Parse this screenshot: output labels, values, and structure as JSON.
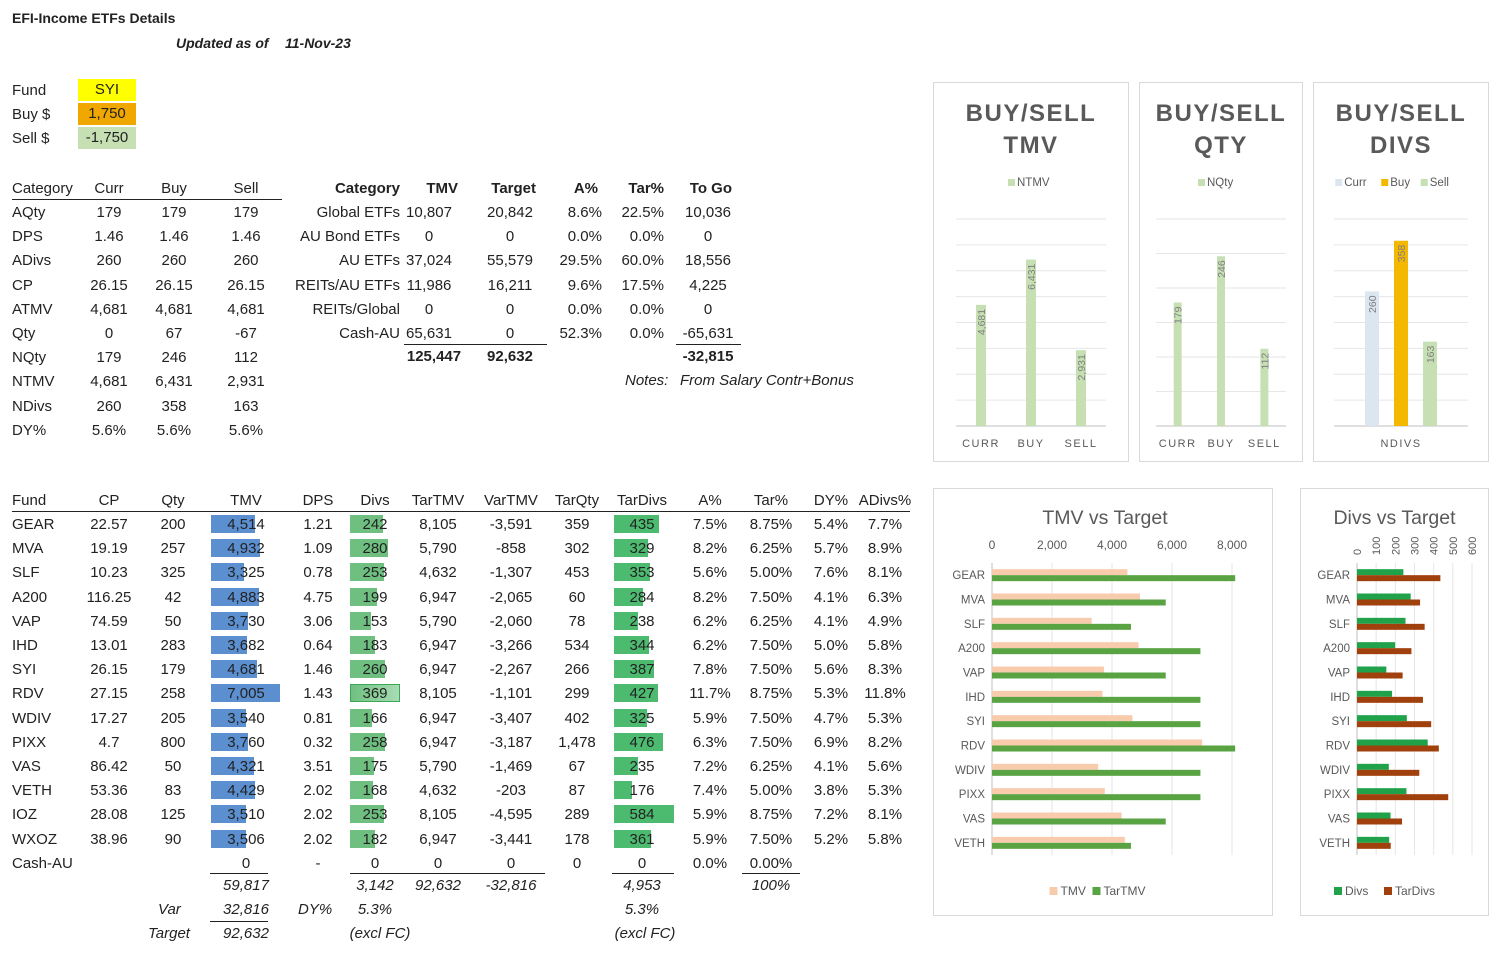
{
  "header": {
    "title": "EFI-Income ETFs Details",
    "updated_label": "Updated as of",
    "updated_date": "11-Nov-23"
  },
  "inputs": {
    "fund_label": "Fund",
    "fund_value": "SYI",
    "buy_label": "Buy $",
    "buy_value": "1,750",
    "sell_label": "Sell $",
    "sell_value": "-1,750",
    "colors": {
      "fund": "#ffff00",
      "buy": "#f0a800",
      "sell": "#c6e0b4"
    }
  },
  "summary": {
    "headers": [
      "Category",
      "Curr",
      "Buy",
      "Sell"
    ],
    "rows": [
      [
        "AQty",
        "179",
        "179",
        "179"
      ],
      [
        "DPS",
        "1.46",
        "1.46",
        "1.46"
      ],
      [
        "ADivs",
        "260",
        "260",
        "260"
      ],
      [
        "CP",
        "26.15",
        "26.15",
        "26.15"
      ],
      [
        "ATMV",
        "4,681",
        "4,681",
        "4,681"
      ],
      [
        "Qty",
        "0",
        "67",
        "-67"
      ],
      [
        "NQty",
        "179",
        "246",
        "112"
      ],
      [
        "NTMV",
        "4,681",
        "6,431",
        "2,931"
      ],
      [
        "NDivs",
        "260",
        "358",
        "163"
      ],
      [
        "DY%",
        "5.6%",
        "5.6%",
        "5.6%"
      ]
    ]
  },
  "categories": {
    "headers": [
      "Category",
      "TMV",
      "Target",
      "A%",
      "Tar%",
      "To Go"
    ],
    "rows": [
      [
        "Global ETFs",
        "10,807",
        "20,842",
        "8.6%",
        "22.5%",
        "10,036"
      ],
      [
        "AU Bond ETFs",
        "0",
        "0",
        "0.0%",
        "0.0%",
        "0"
      ],
      [
        "AU ETFs",
        "37,024",
        "55,579",
        "29.5%",
        "60.0%",
        "18,556"
      ],
      [
        "REITs/AU ETFs",
        "11,986",
        "16,211",
        "9.6%",
        "17.5%",
        "4,225"
      ],
      [
        "REITs/Global",
        "0",
        "0",
        "0.0%",
        "0.0%",
        "0"
      ],
      [
        "Cash-AU",
        "65,631",
        "0",
        "52.3%",
        "0.0%",
        "-65,631"
      ]
    ],
    "totals": {
      "tmv": "125,447",
      "target": "92,632",
      "togo": "-32,815"
    },
    "notes_label": "Notes:",
    "notes_value": "From Salary Contr+Bonus"
  },
  "funds": {
    "headers": [
      "Fund",
      "CP",
      "Qty",
      "TMV",
      "DPS",
      "Divs",
      "TarTMV",
      "VarTMV",
      "TarQty",
      "TarDivs",
      "A%",
      "Tar%",
      "DY%",
      "ADivs%"
    ],
    "rows": [
      [
        "GEAR",
        "22.57",
        "200",
        "4,514",
        "1.21",
        "242",
        "8,105",
        "-3,591",
        "359",
        "435",
        "7.5%",
        "8.75%",
        "5.4%",
        "7.7%"
      ],
      [
        "MVA",
        "19.19",
        "257",
        "4,932",
        "1.09",
        "280",
        "5,790",
        "-858",
        "302",
        "329",
        "8.2%",
        "6.25%",
        "5.7%",
        "8.9%"
      ],
      [
        "SLF",
        "10.23",
        "325",
        "3,325",
        "0.78",
        "253",
        "4,632",
        "-1,307",
        "453",
        "353",
        "5.6%",
        "5.00%",
        "7.6%",
        "8.1%"
      ],
      [
        "A200",
        "116.25",
        "42",
        "4,883",
        "4.75",
        "199",
        "6,947",
        "-2,065",
        "60",
        "284",
        "8.2%",
        "7.50%",
        "4.1%",
        "6.3%"
      ],
      [
        "VAP",
        "74.59",
        "50",
        "3,730",
        "3.06",
        "153",
        "5,790",
        "-2,060",
        "78",
        "238",
        "6.2%",
        "6.25%",
        "4.1%",
        "4.9%"
      ],
      [
        "IHD",
        "13.01",
        "283",
        "3,682",
        "0.64",
        "183",
        "6,947",
        "-3,266",
        "534",
        "344",
        "6.2%",
        "7.50%",
        "5.0%",
        "5.8%"
      ],
      [
        "SYI",
        "26.15",
        "179",
        "4,681",
        "1.46",
        "260",
        "6,947",
        "-2,267",
        "266",
        "387",
        "7.8%",
        "7.50%",
        "5.6%",
        "8.3%"
      ],
      [
        "RDV",
        "27.15",
        "258",
        "7,005",
        "1.43",
        "369",
        "8,105",
        "-1,101",
        "299",
        "427",
        "11.7%",
        "8.75%",
        "5.3%",
        "11.8%"
      ],
      [
        "WDIV",
        "17.27",
        "205",
        "3,540",
        "0.81",
        "166",
        "6,947",
        "-3,407",
        "402",
        "325",
        "5.9%",
        "7.50%",
        "4.7%",
        "5.3%"
      ],
      [
        "PIXX",
        "4.7",
        "800",
        "3,760",
        "0.32",
        "258",
        "6,947",
        "-3,187",
        "1,478",
        "476",
        "6.3%",
        "7.50%",
        "6.9%",
        "8.2%"
      ],
      [
        "VAS",
        "86.42",
        "50",
        "4,321",
        "3.51",
        "175",
        "5,790",
        "-1,469",
        "67",
        "235",
        "7.2%",
        "6.25%",
        "4.1%",
        "5.6%"
      ],
      [
        "VETH",
        "53.36",
        "83",
        "4,429",
        "2.02",
        "168",
        "4,632",
        "-203",
        "87",
        "176",
        "7.4%",
        "5.00%",
        "3.8%",
        "5.3%"
      ],
      [
        "IOZ",
        "28.08",
        "125",
        "3,510",
        "2.02",
        "253",
        "8,105",
        "-4,595",
        "289",
        "584",
        "5.9%",
        "8.75%",
        "7.2%",
        "8.1%"
      ],
      [
        "WXOZ",
        "38.96",
        "90",
        "3,506",
        "2.02",
        "182",
        "6,947",
        "-3,441",
        "178",
        "361",
        "5.9%",
        "7.50%",
        "5.2%",
        "5.8%"
      ],
      [
        "Cash-AU",
        "",
        "",
        "0",
        "-",
        "0",
        "0",
        "0",
        "0",
        "0",
        "0.0%",
        "0.00%",
        "",
        ""
      ]
    ],
    "totals": {
      "tmv": "59,817",
      "divs": "3,142",
      "tartmv": "92,632",
      "vartmv": "-32,816",
      "tardivs": "4,953",
      "tarpct": "100%"
    },
    "var_label": "Var",
    "var_value": "32,816",
    "target_label": "Target",
    "target_value": "92,632",
    "dy_label": "DY%",
    "dy_value": "5.3%",
    "dy_tar_value": "5.3%",
    "excl_label": "(excl FC)",
    "excl_tar_label": "(excl FC)"
  },
  "chart_data": [
    {
      "type": "bar",
      "title": "BUY/SELL TMV",
      "title_lines": [
        "BUY/SELL",
        "TMV"
      ],
      "categories": [
        "CURR",
        "BUY",
        "SELL"
      ],
      "series": [
        {
          "name": "NTMV",
          "values": [
            4681,
            6431,
            2931
          ],
          "labels": [
            "4,681",
            "6,431",
            "2,931"
          ],
          "color": "#c6e0b4"
        }
      ],
      "ylim": [
        0,
        8000
      ],
      "legend": "top",
      "grid": true
    },
    {
      "type": "bar",
      "title": "BUY/SELL QTY",
      "title_lines": [
        "BUY/SELL",
        "QTY"
      ],
      "categories": [
        "CURR",
        "BUY",
        "SELL"
      ],
      "series": [
        {
          "name": "NQty",
          "values": [
            179,
            246,
            112
          ],
          "labels": [
            "179",
            "246",
            "112"
          ],
          "color": "#c6e0b4"
        }
      ],
      "ylim": [
        0,
        300
      ],
      "legend": "top",
      "grid": true
    },
    {
      "type": "bar",
      "title": "BUY/SELL DIVS",
      "title_lines": [
        "BUY/SELL",
        "DIVS"
      ],
      "categories": [
        "NDIVS"
      ],
      "series": [
        {
          "name": "Curr",
          "values": [
            260
          ],
          "labels": [
            "260"
          ],
          "color": "#dce6f1"
        },
        {
          "name": "Buy",
          "values": [
            358
          ],
          "labels": [
            "358"
          ],
          "color": "#f5b800"
        },
        {
          "name": "Sell",
          "values": [
            163
          ],
          "labels": [
            "163"
          ],
          "color": "#c6e0b4"
        }
      ],
      "ylim": [
        0,
        400
      ],
      "legend": "top",
      "grid": true
    },
    {
      "type": "bar",
      "orientation": "horizontal",
      "title": "TMV vs Target",
      "categories": [
        "GEAR",
        "MVA",
        "SLF",
        "A200",
        "VAP",
        "IHD",
        "SYI",
        "RDV",
        "WDIV",
        "PIXX",
        "VAS",
        "VETH"
      ],
      "series": [
        {
          "name": "TMV",
          "values": [
            4514,
            4932,
            3325,
            4883,
            3730,
            3682,
            4681,
            7005,
            3540,
            3760,
            4321,
            4429
          ],
          "color": "#f8cbad"
        },
        {
          "name": "TarTMV",
          "values": [
            8105,
            5790,
            4632,
            6947,
            5790,
            6947,
            6947,
            8105,
            6947,
            6947,
            5790,
            4632
          ],
          "color": "#5aa342"
        }
      ],
      "xticks": [
        "0",
        "2,000",
        "4,000",
        "6,000",
        "8,000"
      ],
      "xlim": [
        0,
        8000
      ],
      "legend": "bottom",
      "grid": true
    },
    {
      "type": "bar",
      "orientation": "horizontal",
      "title": "Divs vs Target",
      "categories": [
        "GEAR",
        "MVA",
        "SLF",
        "A200",
        "VAP",
        "IHD",
        "SYI",
        "RDV",
        "WDIV",
        "PIXX",
        "VAS",
        "VETH"
      ],
      "series": [
        {
          "name": "Divs",
          "values": [
            242,
            280,
            253,
            199,
            153,
            183,
            260,
            369,
            166,
            258,
            175,
            168
          ],
          "color": "#1fa24a"
        },
        {
          "name": "TarDivs",
          "values": [
            435,
            329,
            353,
            284,
            238,
            344,
            387,
            427,
            325,
            476,
            235,
            176
          ],
          "color": "#a0410d"
        }
      ],
      "xticks": [
        "0",
        "100",
        "200",
        "300",
        "400",
        "500",
        "600"
      ],
      "xlim": [
        0,
        600
      ],
      "legend": "bottom",
      "grid": true
    }
  ]
}
